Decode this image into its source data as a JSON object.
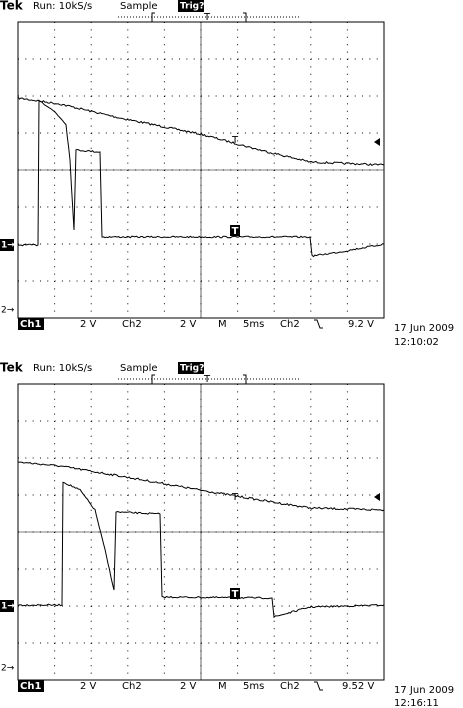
{
  "screens": [
    {
      "header": {
        "brand": "Tek",
        "run": "Run: 10kS/s",
        "mode": "Sample",
        "trig": "Trig?"
      },
      "trigger_marker": "T",
      "ch1_ref": "1→",
      "ch2_ref": "2→",
      "ch1_trace_marker": "T",
      "ch2_trace_marker": "T",
      "footer": {
        "ch1": "Ch1",
        "ch1_scale": "2 V",
        "ch2": "Ch2",
        "ch2_scale": "2 V",
        "m": "M",
        "timebase": "5ms",
        "trig_source": "Ch2",
        "trig_level": "9.2 V"
      },
      "date": "17 Jun 2009",
      "time": "12:10:02"
    },
    {
      "header": {
        "brand": "Tek",
        "run": "Run: 10kS/s",
        "mode": "Sample",
        "trig": "Trig?"
      },
      "trigger_marker": "T",
      "ch1_ref": "1→",
      "ch2_ref": "2→",
      "ch1_trace_marker": "T",
      "ch2_trace_marker": "T",
      "footer": {
        "ch1": "Ch1",
        "ch1_scale": "2 V",
        "ch2": "Ch2",
        "ch2_scale": "2 V",
        "m": "M",
        "timebase": "5ms",
        "trig_source": "Ch2",
        "trig_level": "9.52 V"
      },
      "date": "17 Jun 2009",
      "time": "12:16:11"
    }
  ]
}
